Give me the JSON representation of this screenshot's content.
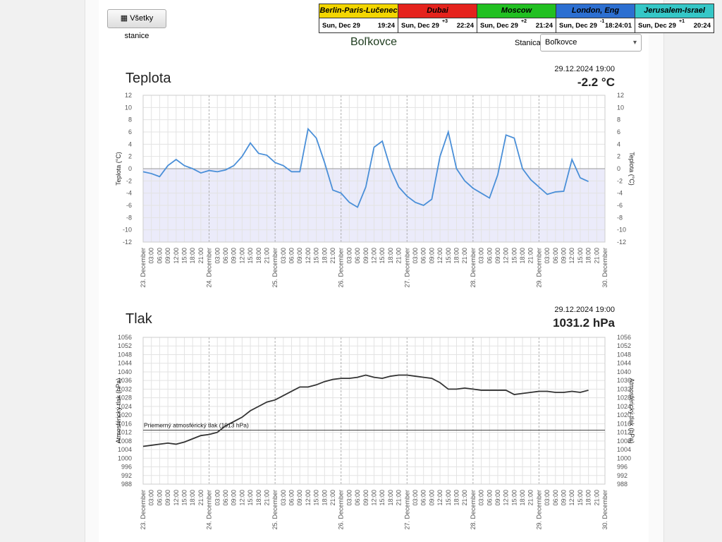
{
  "button": "Všetky stanice",
  "clocks": [
    {
      "city": "Berlin-Paris-Lučenec",
      "color": "#f3d600",
      "date": "Sun, Dec 29",
      "offset": null,
      "time": "19:24"
    },
    {
      "city": "Dubai",
      "color": "#e5231d",
      "date": "Sun, Dec 29",
      "offset": "+3",
      "time": "22:24"
    },
    {
      "city": "Moscow",
      "color": "#22c022",
      "date": "Sun, Dec 29",
      "offset": "+2",
      "time": "21:24"
    },
    {
      "city": "London, Eng",
      "color": "#2c6fd1",
      "date": "Sun, Dec 29",
      "offset": "-1",
      "time": "18:24:01"
    },
    {
      "city": "Jerusalem-Israel",
      "color": "#35c7c7",
      "date": "Sun, Dec 29",
      "offset": "+1",
      "time": "20:24"
    }
  ],
  "station": {
    "title": "Boľkovce",
    "label": "Stanica:",
    "selected": "Boľkovce"
  },
  "chart_data": [
    {
      "type": "line",
      "title": "Teplota",
      "timestamp": "29.12.2024 19:00",
      "current_value": "-2.2 °C",
      "y_axis_label": "Teplota (°C)",
      "color": "#4a8fd8",
      "categories": [
        "23. December",
        "03:00",
        "06:00",
        "09:00",
        "12:00",
        "15:00",
        "18:00",
        "21:00",
        "24. December",
        "03:00",
        "06:00",
        "09:00",
        "12:00",
        "15:00",
        "18:00",
        "21:00",
        "25. December",
        "03:00",
        "06:00",
        "09:00",
        "12:00",
        "15:00",
        "18:00",
        "21:00",
        "26. December",
        "03:00",
        "06:00",
        "09:00",
        "12:00",
        "15:00",
        "18:00",
        "21:00",
        "27. December",
        "03:00",
        "06:00",
        "09:00",
        "12:00",
        "15:00",
        "18:00",
        "21:00",
        "28. December",
        "03:00",
        "06:00",
        "09:00",
        "12:00",
        "15:00",
        "18:00",
        "21:00",
        "29. December",
        "03:00",
        "06:00",
        "09:00",
        "12:00",
        "15:00",
        "18:00",
        "21:00",
        "30. December"
      ],
      "values": [
        -0.5,
        -0.8,
        -1.3,
        0.5,
        1.5,
        0.5,
        0,
        -0.7,
        -0.3,
        -0.5,
        -0.2,
        0.5,
        2.0,
        4.2,
        2.5,
        2.2,
        1.0,
        0.5,
        -0.5,
        -0.5,
        6.5,
        5,
        1,
        -3.5,
        -4,
        -5.5,
        -6.3,
        -3,
        3.5,
        4.5,
        0,
        -3,
        -4.5,
        -5.5,
        -6,
        -5,
        2,
        6,
        0,
        -2,
        -3.2,
        -4,
        -4.8,
        -1,
        5.5,
        5,
        0,
        -1.8,
        -3,
        -4.2,
        -3.8,
        -3.7,
        1.5,
        -1.5,
        -2.1,
        null,
        null
      ],
      "ylim": [
        -12,
        12
      ],
      "yticks": [
        -12,
        -10,
        -8,
        -6,
        -4,
        -2,
        0,
        2,
        4,
        6,
        8,
        10,
        12
      ],
      "grid": true
    },
    {
      "type": "line",
      "title": "Tlak",
      "timestamp": "29.12.2024 19:00",
      "current_value": "1031.2 hPa",
      "y_axis_label": "Atmosférický tlak (hPa)",
      "color": "#333333",
      "categories": [
        "23. December",
        "03:00",
        "06:00",
        "09:00",
        "12:00",
        "15:00",
        "18:00",
        "21:00",
        "24. December",
        "03:00",
        "06:00",
        "09:00",
        "12:00",
        "15:00",
        "18:00",
        "21:00",
        "25. December",
        "03:00",
        "06:00",
        "09:00",
        "12:00",
        "15:00",
        "18:00",
        "21:00",
        "26. December",
        "03:00",
        "06:00",
        "09:00",
        "12:00",
        "15:00",
        "18:00",
        "21:00",
        "27. December",
        "03:00",
        "06:00",
        "09:00",
        "12:00",
        "15:00",
        "18:00",
        "21:00",
        "28. December",
        "03:00",
        "06:00",
        "09:00",
        "12:00",
        "15:00",
        "18:00",
        "21:00",
        "29. December",
        "03:00",
        "06:00",
        "09:00",
        "12:00",
        "15:00",
        "18:00",
        "21:00",
        "30. December"
      ],
      "values": [
        1005.5,
        1006,
        1006.5,
        1007,
        1006.5,
        1007.5,
        1009,
        1010.5,
        1011,
        1012,
        1015,
        1017,
        1019,
        1022,
        1024,
        1026,
        1027,
        1029,
        1031,
        1033,
        1033,
        1034,
        1035.5,
        1036.5,
        1037,
        1037,
        1037.5,
        1038.5,
        1037.5,
        1037,
        1038,
        1038.5,
        1038.5,
        1038,
        1037.5,
        1037,
        1035,
        1032,
        1032,
        1032.5,
        1032,
        1031.5,
        1031.5,
        1031.5,
        1031.5,
        1029.5,
        1030,
        1030.5,
        1031,
        1031,
        1030.5,
        1030.5,
        1031,
        1030.5,
        1031.5,
        null,
        null
      ],
      "reference_line": {
        "value": 1013,
        "label": "Priemerný atmosférický tlak (1013 hPa)"
      },
      "ylim": [
        988,
        1056
      ],
      "yticks": [
        988,
        992,
        996,
        1000,
        1004,
        1008,
        1012,
        1016,
        1020,
        1024,
        1028,
        1032,
        1036,
        1040,
        1044,
        1048,
        1052,
        1056
      ],
      "grid": true
    }
  ]
}
